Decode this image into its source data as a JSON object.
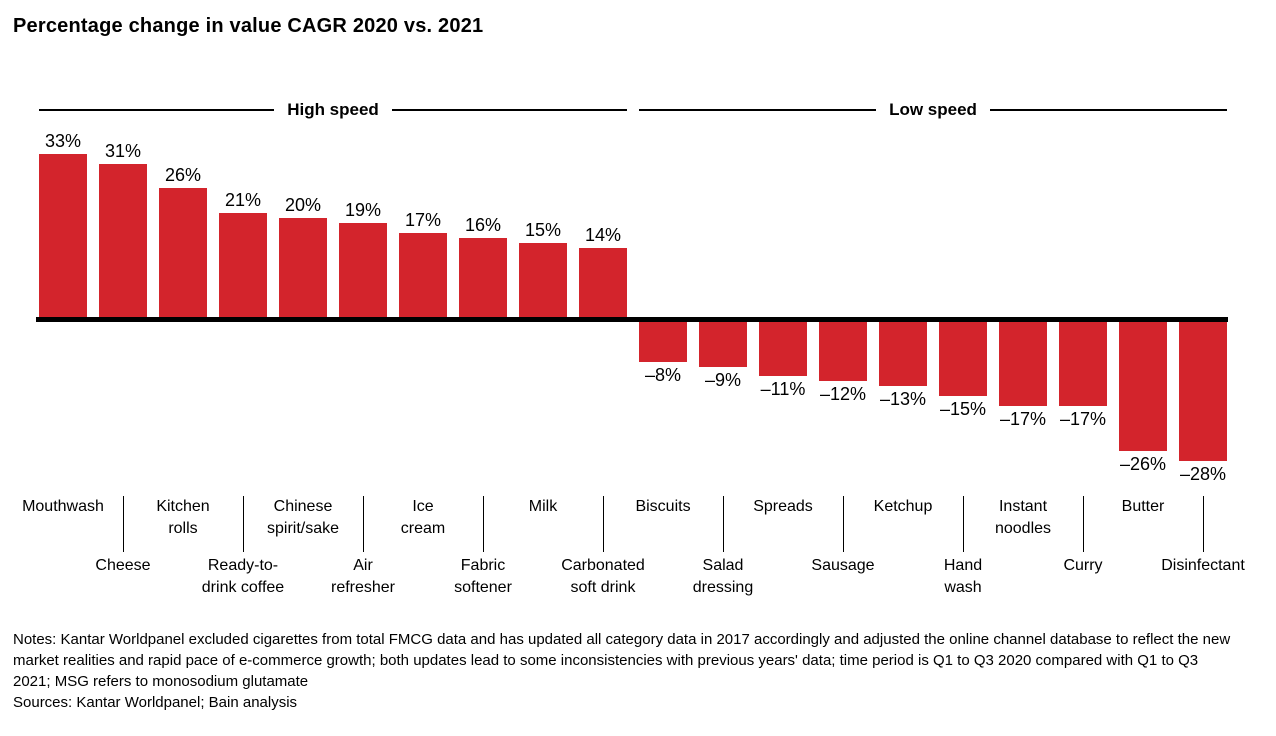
{
  "title": "Percentage change in value CAGR 2020 vs. 2021",
  "chart_data": {
    "type": "bar",
    "title": "Percentage change in value CAGR 2020 vs. 2021",
    "unit": "percent",
    "ylim": [
      -30,
      35
    ],
    "grid": false,
    "bar_color": "#d3242c",
    "baseline_color": "#000000",
    "groups": [
      {
        "label": "High speed",
        "category_indexes": [
          0,
          1,
          2,
          3,
          4,
          5,
          6,
          7,
          8,
          9
        ]
      },
      {
        "label": "Low speed",
        "category_indexes": [
          10,
          11,
          12,
          13,
          14,
          15,
          16,
          17,
          18,
          19
        ]
      }
    ],
    "categories": [
      "Mouthwash",
      "Cheese",
      "Kitchen rolls",
      "Ready-to-drink coffee",
      "Chinese spirit/sake",
      "Air refresher",
      "Ice cream",
      "Fabric softener",
      "Milk",
      "Carbonated soft drink",
      "Biscuits",
      "Salad dressing",
      "Spreads",
      "Sausage",
      "Ketchup",
      "Hand wash",
      "Instant noodles",
      "Curry",
      "Butter",
      "Disinfectant"
    ],
    "values": [
      33,
      31,
      26,
      21,
      20,
      19,
      17,
      16,
      15,
      14,
      -8,
      -9,
      -11,
      -12,
      -13,
      -15,
      -17,
      -17,
      -26,
      -28
    ],
    "value_labels": [
      "33%",
      "31%",
      "26%",
      "21%",
      "20%",
      "19%",
      "17%",
      "16%",
      "15%",
      "14%",
      "–8%",
      "–9%",
      "–11%",
      "–12%",
      "–13%",
      "–15%",
      "–17%",
      "–17%",
      "–26%",
      "–28%"
    ]
  },
  "category_labels": [
    {
      "row": 1,
      "lines": [
        "Mouthwash"
      ]
    },
    {
      "row": 2,
      "lines": [
        "Cheese"
      ]
    },
    {
      "row": 1,
      "lines": [
        "Kitchen",
        "rolls"
      ]
    },
    {
      "row": 2,
      "lines": [
        "Ready-to-",
        "drink coffee"
      ]
    },
    {
      "row": 1,
      "lines": [
        "Chinese",
        "spirit/sake"
      ]
    },
    {
      "row": 2,
      "lines": [
        "Air",
        "refresher"
      ]
    },
    {
      "row": 1,
      "lines": [
        "Ice",
        "cream"
      ]
    },
    {
      "row": 2,
      "lines": [
        "Fabric",
        "softener"
      ]
    },
    {
      "row": 1,
      "lines": [
        "Milk"
      ]
    },
    {
      "row": 2,
      "lines": [
        "Carbonated",
        "soft drink"
      ]
    },
    {
      "row": 1,
      "lines": [
        "Biscuits"
      ]
    },
    {
      "row": 2,
      "lines": [
        "Salad",
        "dressing"
      ]
    },
    {
      "row": 1,
      "lines": [
        "Spreads"
      ]
    },
    {
      "row": 2,
      "lines": [
        "Sausage"
      ]
    },
    {
      "row": 1,
      "lines": [
        "Ketchup"
      ]
    },
    {
      "row": 2,
      "lines": [
        "Hand",
        "wash"
      ]
    },
    {
      "row": 1,
      "lines": [
        "Instant",
        "noodles"
      ]
    },
    {
      "row": 2,
      "lines": [
        "Curry"
      ]
    },
    {
      "row": 1,
      "lines": [
        "Butter"
      ]
    },
    {
      "row": 2,
      "lines": [
        "Disinfectant"
      ]
    }
  ],
  "notes": "Notes: Kantar Worldpanel excluded cigarettes from total FMCG data and has updated all category data in 2017 accordingly and adjusted the online channel database to reflect the new market realities and rapid pace of e-commerce growth; both updates lead to some inconsistencies with previous years' data; time period is Q1 to Q3 2020 compared with Q1 to Q3 2021; MSG refers to monosodium glutamate",
  "sources": "Sources: Kantar Worldpanel; Bain analysis"
}
